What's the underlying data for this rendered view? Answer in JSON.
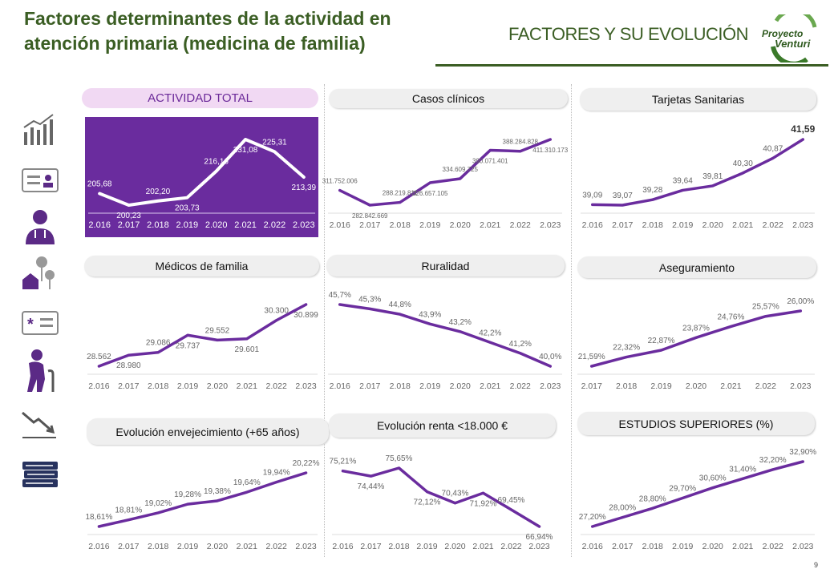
{
  "header": {
    "title": "Factores determinantes de la actividad en atención primaria (medicina de familia)",
    "section": "FACTORES Y SU EVOLUCIÓN",
    "logo_text_1": "Proyecto",
    "logo_text_2": "Venturi"
  },
  "page_number": "9",
  "colors": {
    "accent": "#6a2c9e",
    "title_green": "#3b5e24",
    "highlight_bg": "#f1d9f3"
  },
  "side_icons": [
    "bar-chart-trend-icon",
    "id-card-icon",
    "doctor-icon",
    "rural-house-icon",
    "health-card-icon",
    "elderly-person-icon",
    "downtrend-icon",
    "books-icon"
  ],
  "chart_data": [
    {
      "type": "line",
      "title": "ACTIVIDAD TOTAL",
      "categories": [
        "2.016",
        "2.017",
        "2.018",
        "2.019",
        "2.020",
        "2.021",
        "2.022",
        "2.023"
      ],
      "values": [
        205.68,
        200.23,
        202.2,
        203.73,
        216.16,
        231.08,
        225.31,
        213.39
      ],
      "labels": [
        "205,68",
        "200,23",
        "202,20",
        "203,73",
        "216,16",
        "231,08",
        "225,31",
        "213,39"
      ]
    },
    {
      "type": "line",
      "title": "Casos clínicos",
      "categories": [
        "2.016",
        "2.017",
        "2.018",
        "2.019",
        "2.020",
        "2.021",
        "2.022",
        "2.023"
      ],
      "values": [
        311752006,
        282842669,
        288219811,
        326657105,
        334609725,
        390071401,
        388284828,
        411310173
      ],
      "labels": [
        "311.752.006",
        "282.842.669",
        "288.219.811",
        "326.657.105",
        "334.609.725",
        "390.071.401",
        "388.284.828",
        "411.310.173"
      ]
    },
    {
      "type": "line",
      "title": "Tarjetas Sanitarias",
      "categories": [
        "2.016",
        "2.017",
        "2.018",
        "2.019",
        "2.020",
        "2.021",
        "2.022",
        "2.023"
      ],
      "values": [
        39.09,
        39.07,
        39.28,
        39.64,
        39.81,
        40.3,
        40.87,
        41.59
      ],
      "labels": [
        "39,09",
        "39,07",
        "39,28",
        "39,64",
        "39,81",
        "40,30",
        "40,87",
        "41,59"
      ]
    },
    {
      "type": "line",
      "title": "Médicos de familia",
      "categories": [
        "2.016",
        "2.017",
        "2.018",
        "2.019",
        "2.020",
        "2.021",
        "2.022",
        "2.023"
      ],
      "values": [
        28562,
        28980,
        29086,
        29737,
        29552,
        29601,
        30300,
        30899
      ],
      "labels": [
        "28.562",
        "28.980",
        "29.086",
        "29.737",
        "29.552",
        "29.601",
        "30.300",
        "30.899"
      ]
    },
    {
      "type": "line",
      "title": "Ruralidad",
      "categories": [
        "2.016",
        "2.017",
        "2.018",
        "2.019",
        "2.020",
        "2.021",
        "2.022",
        "2.023"
      ],
      "values": [
        45.7,
        45.3,
        44.8,
        43.9,
        43.2,
        42.2,
        41.2,
        40.0
      ],
      "labels": [
        "45,7%",
        "45,3%",
        "44,8%",
        "43,9%",
        "43,2%",
        "42,2%",
        "41,2%",
        "40,0%"
      ]
    },
    {
      "type": "line",
      "title": "Aseguramiento",
      "categories": [
        "2.017",
        "2.018",
        "2.019",
        "2.020",
        "2.021",
        "2.022",
        "2.023"
      ],
      "values": [
        21.59,
        22.32,
        22.87,
        23.87,
        24.76,
        25.57,
        26.0
      ],
      "labels": [
        "21,59%",
        "22,32%",
        "22,87%",
        "23,87%",
        "24,76%",
        "25,57%",
        "26,00%"
      ]
    },
    {
      "type": "line",
      "title": "Evolución envejecimiento (+65 años)",
      "categories": [
        "2.016",
        "2.017",
        "2.018",
        "2.019",
        "2.020",
        "2.021",
        "2.022",
        "2.023"
      ],
      "values": [
        18.61,
        18.81,
        19.02,
        19.28,
        19.38,
        19.64,
        19.94,
        20.22
      ],
      "labels": [
        "18,61%",
        "18,81%",
        "19,02%",
        "19,28%",
        "19,38%",
        "19,64%",
        "19,94%",
        "20,22%"
      ]
    },
    {
      "type": "line",
      "title": "Evolución renta <18.000 €",
      "categories": [
        "2.016",
        "2.017",
        "2.018",
        "2.019",
        "2.020",
        "2.021",
        "2.022",
        "2.023"
      ],
      "values": [
        75.21,
        74.44,
        75.65,
        72.12,
        70.43,
        71.92,
        69.45,
        66.94
      ],
      "labels": [
        "75,21%",
        "74,44%",
        "75,65%",
        "72,12%",
        "70,43%",
        "71,92%",
        "69,45%",
        "66,94%"
      ]
    },
    {
      "type": "line",
      "title": "ESTUDIOS SUPERIORES (%)",
      "categories": [
        "2.016",
        "2.017",
        "2.018",
        "2.019",
        "2.020",
        "2.021",
        "2.022",
        "2.023"
      ],
      "values": [
        27.2,
        28.0,
        28.8,
        29.7,
        30.6,
        31.4,
        32.2,
        32.9
      ],
      "labels": [
        "27,20%",
        "28,00%",
        "28,80%",
        "29,70%",
        "30,60%",
        "31,40%",
        "32,20%",
        "32,90%"
      ]
    }
  ]
}
